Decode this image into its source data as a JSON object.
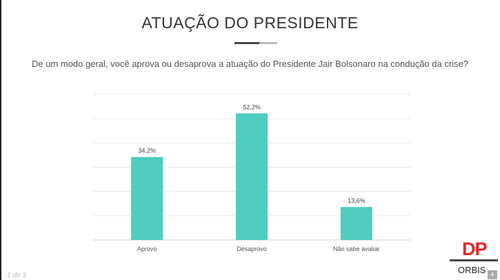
{
  "header": {
    "title": "ATUAÇÃO DO PRESIDENTE",
    "question": "De um modo geral, você aprova ou desaprova a atuação do Presidente Jair Bolsonaro na condução da crise?"
  },
  "footer": {
    "page": "1 de 3",
    "logo_dp": "DP",
    "logo_orbis": "ORBIS"
  },
  "colors": {
    "bar": "#4ecdc0",
    "grid": "#e6e6e6"
  },
  "chart_data": {
    "type": "bar",
    "title": "ATUAÇÃO DO PRESIDENTE",
    "categories": [
      "Aprovo",
      "Desaprovo",
      "Não sabe avaliar"
    ],
    "values": [
      34.2,
      52.2,
      13.6
    ],
    "labels": [
      "34,2%",
      "52,2%",
      "13,6%"
    ],
    "xlabel": "",
    "ylabel": "",
    "ylim": [
      0,
      60
    ],
    "grid": true
  }
}
